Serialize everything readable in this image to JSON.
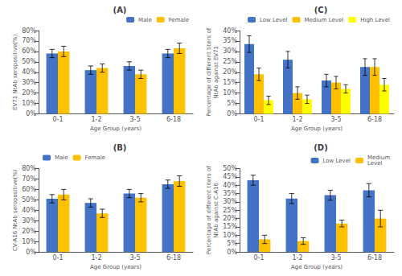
{
  "chart_data": [
    {
      "type": "bar",
      "title": "(A)",
      "ylabel": "EV71 NtAb seropositive(%)",
      "xlabel": "Age Group (years)",
      "categories": [
        "0-1",
        "1-2",
        "3-5",
        "6-18"
      ],
      "series": [
        {
          "name": "Male",
          "color": "#4472C4",
          "values": [
            0.58,
            0.42,
            0.46,
            0.58
          ],
          "errors": [
            0.04,
            0.04,
            0.04,
            0.04
          ]
        },
        {
          "name": "Female",
          "color": "#FFC000",
          "values": [
            0.6,
            0.44,
            0.38,
            0.63
          ],
          "errors": [
            0.05,
            0.04,
            0.04,
            0.05
          ]
        }
      ],
      "ylim": [
        0,
        0.8
      ],
      "yticks": [
        {
          "value": 0,
          "label": "0%"
        },
        {
          "value": 0.1,
          "label": "10%"
        },
        {
          "value": 0.2,
          "label": "20%"
        },
        {
          "value": 0.3,
          "label": "30%"
        },
        {
          "value": 0.4,
          "label": "40%"
        },
        {
          "value": 0.5,
          "label": "50%"
        },
        {
          "value": 0.6,
          "label": "60%"
        },
        {
          "value": 0.7,
          "label": "70%"
        },
        {
          "value": 0.8,
          "label": "80%"
        }
      ],
      "legend": "upper right",
      "grid": false
    },
    {
      "type": "bar",
      "title": "(B)",
      "ylabel": "CV-A16 NtAb seropositive(%)",
      "xlabel": "Age Group (years)",
      "categories": [
        "0-1",
        "1-2",
        "3-5",
        "6-18"
      ],
      "series": [
        {
          "name": "Male",
          "color": "#4472C4",
          "values": [
            0.51,
            0.47,
            0.56,
            0.65
          ],
          "errors": [
            0.04,
            0.04,
            0.04,
            0.04
          ]
        },
        {
          "name": "Female",
          "color": "#FFC000",
          "values": [
            0.55,
            0.37,
            0.52,
            0.68
          ],
          "errors": [
            0.05,
            0.04,
            0.04,
            0.05
          ]
        }
      ],
      "ylim": [
        0,
        0.8
      ],
      "yticks": [
        {
          "value": 0,
          "label": "0%"
        },
        {
          "value": 0.1,
          "label": "10%"
        },
        {
          "value": 0.2,
          "label": "20%"
        },
        {
          "value": 0.3,
          "label": "30%"
        },
        {
          "value": 0.4,
          "label": "40%"
        },
        {
          "value": 0.5,
          "label": "50%"
        },
        {
          "value": 0.6,
          "label": "60%"
        },
        {
          "value": 0.7,
          "label": "70%"
        },
        {
          "value": 0.8,
          "label": "80%"
        }
      ],
      "legend": "upper left",
      "grid": false
    },
    {
      "type": "bar",
      "title": "(C)",
      "ylabel": "Percentage of different titers of\nNtAb against EV71",
      "xlabel": "Age Group (years)",
      "categories": [
        "0-1",
        "1-2",
        "3-5",
        "6-18"
      ],
      "series": [
        {
          "name": "Low Level",
          "color": "#4472C4",
          "values": [
            0.335,
            0.26,
            0.16,
            0.225
          ],
          "errors": [
            0.04,
            0.04,
            0.03,
            0.04
          ]
        },
        {
          "name": "Medium Level",
          "color": "#FFC000",
          "values": [
            0.19,
            0.1,
            0.15,
            0.225
          ],
          "errors": [
            0.03,
            0.03,
            0.03,
            0.04
          ]
        },
        {
          "name": "High Level",
          "color": "#FFFF00",
          "values": [
            0.065,
            0.07,
            0.12,
            0.14
          ],
          "errors": [
            0.02,
            0.02,
            0.02,
            0.03
          ]
        }
      ],
      "ylim": [
        0,
        0.4
      ],
      "yticks": [
        {
          "value": 0,
          "label": "0%"
        },
        {
          "value": 0.05,
          "label": "5%"
        },
        {
          "value": 0.1,
          "label": "10%"
        },
        {
          "value": 0.15,
          "label": "15%"
        },
        {
          "value": 0.2,
          "label": "20%"
        },
        {
          "value": 0.25,
          "label": "25%"
        },
        {
          "value": 0.3,
          "label": "30%"
        },
        {
          "value": 0.35,
          "label": "35%"
        },
        {
          "value": 0.4,
          "label": "40%"
        }
      ],
      "legend": "upper right",
      "grid": false
    },
    {
      "type": "bar",
      "title": "(D)",
      "ylabel": "Percentage of different titers of\nNtAb against C-A16",
      "xlabel": "Age Group (years)",
      "categories": [
        "0-1",
        "1-2",
        "3-5",
        "6-18"
      ],
      "series": [
        {
          "name": "Low Level",
          "color": "#4472C4",
          "values": [
            0.43,
            0.32,
            0.34,
            0.37
          ],
          "errors": [
            0.03,
            0.03,
            0.03,
            0.04
          ]
        },
        {
          "name": "Medium\nLevel",
          "color": "#FFC000",
          "values": [
            0.075,
            0.065,
            0.17,
            0.2
          ],
          "errors": [
            0.025,
            0.02,
            0.02,
            0.05
          ]
        }
      ],
      "ylim": [
        0,
        0.5
      ],
      "yticks": [
        {
          "value": 0,
          "label": "0%"
        },
        {
          "value": 0.05,
          "label": "5%"
        },
        {
          "value": 0.1,
          "label": "10%"
        },
        {
          "value": 0.15,
          "label": "15%"
        },
        {
          "value": 0.2,
          "label": "20%"
        },
        {
          "value": 0.25,
          "label": "25%"
        },
        {
          "value": 0.3,
          "label": "30%"
        },
        {
          "value": 0.35,
          "label": "35%"
        },
        {
          "value": 0.4,
          "label": "40%"
        },
        {
          "value": 0.45,
          "label": "45%"
        },
        {
          "value": 0.5,
          "label": "50%"
        }
      ],
      "legend": "upper right",
      "grid": false
    }
  ]
}
